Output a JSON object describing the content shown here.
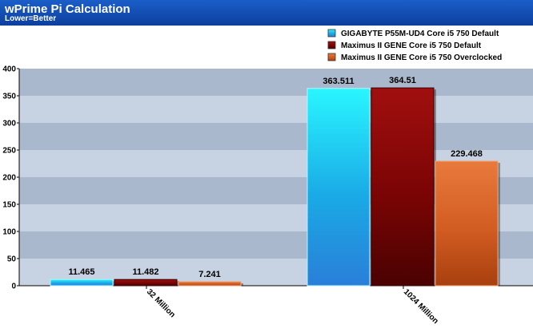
{
  "header": {
    "title": "wPrime Pi Calculation",
    "subtitle": "Lower=Better"
  },
  "chart_data": {
    "type": "bar",
    "categories": [
      "32 Million",
      "1024 Million"
    ],
    "series": [
      {
        "name": "GIGABYTE P55M-UD4 Core i5 750 Default",
        "values": [
          11.465,
          363.511
        ],
        "labels": [
          "11.465",
          "363.511"
        ],
        "color": "#18d4f0"
      },
      {
        "name": "Maximus II GENE Core i5 750 Default",
        "values": [
          11.482,
          364.51
        ],
        "labels": [
          "11.482",
          "364.51"
        ],
        "color": "#8a0a0a"
      },
      {
        "name": "Maximus II GENE Core i5 750 Overclocked",
        "values": [
          7.241,
          229.468
        ],
        "labels": [
          "7.241",
          "229.468"
        ],
        "color": "#d8642a"
      }
    ],
    "ylim": [
      0,
      400
    ],
    "yticks": [
      0,
      50,
      100,
      150,
      200,
      250,
      300,
      350,
      400
    ],
    "grid": true,
    "legend": "top-right"
  }
}
